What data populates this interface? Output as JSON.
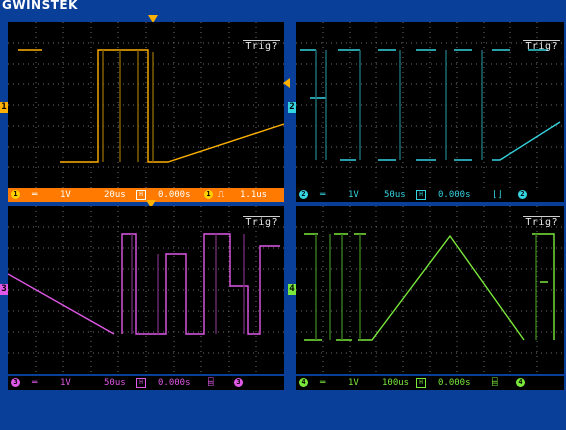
{
  "brand": "GWINSTEK",
  "colors": {
    "background": "#0a3f99",
    "screen": "#000000",
    "grid": "#6b6b6b",
    "ch1": "#ffb000",
    "ch2": "#35d4e0",
    "ch3": "#e058e8",
    "ch4": "#7ae83a",
    "ch1_bar": "#ff7a00"
  },
  "panels": [
    {
      "id": "ch1",
      "trigger_label": "Trig?",
      "channel_number": "1",
      "channel_icon": "channel-1-marker-icon",
      "volts_div": "1V",
      "time_div": "20us",
      "position": "0.000s",
      "extra": "1.1us",
      "coupling_icon": "dc-coupling-icon",
      "status_bg": "#ff7a00",
      "status_fg": "#ffffff"
    },
    {
      "id": "ch2",
      "trigger_label": "Trig?",
      "channel_number": "2",
      "channel_icon": "channel-2-marker-icon",
      "volts_div": "1V",
      "time_div": "50us",
      "position": "0.000s",
      "extra": "",
      "coupling_icon": "dc-coupling-icon",
      "status_bg": "#000000",
      "status_fg": "#35d4e0"
    },
    {
      "id": "ch3",
      "trigger_label": "Trig?",
      "channel_number": "3",
      "channel_icon": "channel-3-marker-icon",
      "volts_div": "1V",
      "time_div": "50us",
      "position": "0.000s",
      "extra": "",
      "coupling_icon": "dc-coupling-icon",
      "status_bg": "#000000",
      "status_fg": "#e058e8"
    },
    {
      "id": "ch4",
      "trigger_label": "Trig?",
      "channel_number": "4",
      "channel_icon": "channel-4-marker-icon",
      "volts_div": "1V",
      "time_div": "100us",
      "position": "0.000s",
      "extra": "",
      "coupling_icon": "dc-coupling-icon",
      "status_bg": "#000000",
      "status_fg": "#7ae83a"
    }
  ]
}
